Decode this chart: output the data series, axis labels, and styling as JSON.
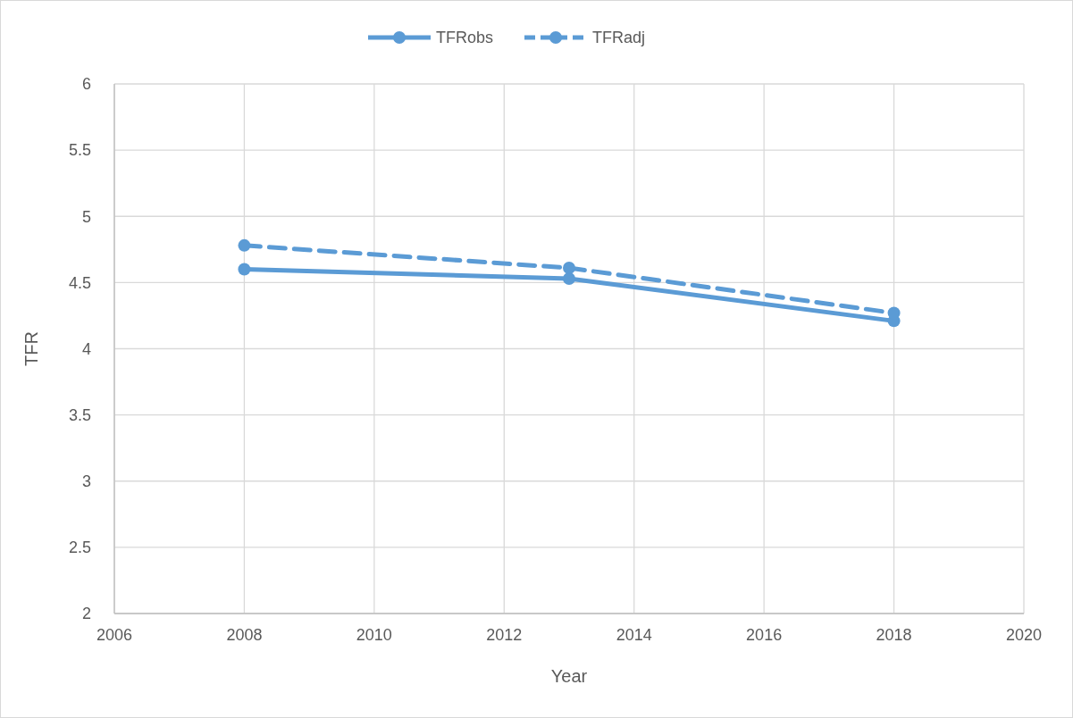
{
  "chart_data": {
    "type": "line",
    "xlabel": "Year",
    "ylabel": "TFR",
    "x": [
      2008,
      2013,
      2018
    ],
    "series": [
      {
        "name": "TFRobs",
        "color": "#5b9bd5",
        "line_style": "solid",
        "values": [
          4.6,
          4.53,
          4.21
        ]
      },
      {
        "name": "TFRadj",
        "color": "#5b9bd5",
        "line_style": "dashed",
        "values": [
          4.78,
          4.61,
          4.27
        ]
      }
    ],
    "xlim": [
      2006,
      2020
    ],
    "xticks": [
      2006,
      2008,
      2010,
      2012,
      2014,
      2016,
      2018,
      2020
    ],
    "ylim": [
      2,
      6
    ],
    "yticks": [
      2,
      2.5,
      3,
      3.5,
      4,
      4.5,
      5,
      5.5,
      6
    ],
    "grid": true,
    "legend": "top",
    "marker": "circle"
  }
}
